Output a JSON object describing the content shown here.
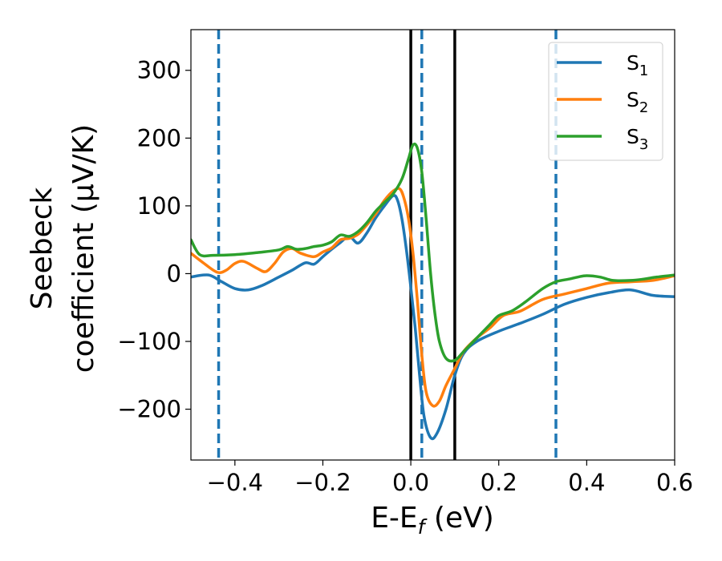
{
  "chart_data": {
    "type": "line",
    "title": "",
    "xlabel": {
      "main": "E-E",
      "sub": "f",
      "tail": " (eV)"
    },
    "ylabel": {
      "line1": "Seebeck",
      "line2": "coefficient  (μV/K)"
    },
    "xlim": [
      -0.5,
      0.6
    ],
    "ylim": [
      -275,
      360
    ],
    "xticks": [
      -0.4,
      -0.2,
      0.0,
      0.2,
      0.4,
      0.6
    ],
    "xtick_labels": [
      "−0.4",
      "−0.2",
      "0.0",
      "0.2",
      "0.4",
      "0.6"
    ],
    "yticks": [
      -200,
      -100,
      0,
      100,
      200,
      300
    ],
    "ytick_labels": [
      "−200",
      "−100",
      "0",
      "100",
      "200",
      "300"
    ],
    "grid": false,
    "legend_position": "top-right",
    "vlines_solid": [
      0.0,
      0.1
    ],
    "vlines_dashed": [
      -0.437,
      0.025,
      0.33
    ],
    "colors": {
      "S1": "#1f77b4",
      "S2": "#ff7f0e",
      "S3": "#2ca02c",
      "solid_line": "#000000",
      "dashed_line": "#1f77b4"
    },
    "series": [
      {
        "name": "S",
        "sub": "1",
        "color": "#1f77b4",
        "points": [
          [
            -0.5,
            -5
          ],
          [
            -0.46,
            -2
          ],
          [
            -0.43,
            -12
          ],
          [
            -0.4,
            -22
          ],
          [
            -0.37,
            -24
          ],
          [
            -0.34,
            -18
          ],
          [
            -0.3,
            -5
          ],
          [
            -0.27,
            5
          ],
          [
            -0.24,
            16
          ],
          [
            -0.22,
            14
          ],
          [
            -0.2,
            25
          ],
          [
            -0.18,
            36
          ],
          [
            -0.16,
            46
          ],
          [
            -0.14,
            55
          ],
          [
            -0.12,
            45
          ],
          [
            -0.1,
            60
          ],
          [
            -0.08,
            82
          ],
          [
            -0.06,
            100
          ],
          [
            -0.04,
            115
          ],
          [
            -0.03,
            108
          ],
          [
            -0.02,
            80
          ],
          [
            -0.01,
            35
          ],
          [
            0.0,
            -20
          ],
          [
            0.01,
            -80
          ],
          [
            0.02,
            -150
          ],
          [
            0.03,
            -210
          ],
          [
            0.045,
            -242
          ],
          [
            0.06,
            -235
          ],
          [
            0.08,
            -200
          ],
          [
            0.1,
            -150
          ],
          [
            0.12,
            -118
          ],
          [
            0.15,
            -100
          ],
          [
            0.2,
            -85
          ],
          [
            0.25,
            -73
          ],
          [
            0.3,
            -60
          ],
          [
            0.35,
            -45
          ],
          [
            0.4,
            -35
          ],
          [
            0.45,
            -28
          ],
          [
            0.5,
            -24
          ],
          [
            0.55,
            -32
          ],
          [
            0.6,
            -34
          ]
        ]
      },
      {
        "name": "S",
        "sub": "2",
        "color": "#ff7f0e",
        "points": [
          [
            -0.5,
            30
          ],
          [
            -0.47,
            15
          ],
          [
            -0.44,
            2
          ],
          [
            -0.42,
            5
          ],
          [
            -0.4,
            15
          ],
          [
            -0.38,
            18
          ],
          [
            -0.35,
            8
          ],
          [
            -0.33,
            3
          ],
          [
            -0.31,
            15
          ],
          [
            -0.29,
            32
          ],
          [
            -0.27,
            37
          ],
          [
            -0.25,
            30
          ],
          [
            -0.22,
            25
          ],
          [
            -0.2,
            32
          ],
          [
            -0.18,
            38
          ],
          [
            -0.16,
            50
          ],
          [
            -0.14,
            52
          ],
          [
            -0.12,
            58
          ],
          [
            -0.1,
            72
          ],
          [
            -0.08,
            88
          ],
          [
            -0.06,
            108
          ],
          [
            -0.04,
            122
          ],
          [
            -0.025,
            125
          ],
          [
            -0.015,
            110
          ],
          [
            -0.005,
            80
          ],
          [
            0.005,
            30
          ],
          [
            0.015,
            -40
          ],
          [
            0.025,
            -120
          ],
          [
            0.035,
            -175
          ],
          [
            0.05,
            -195
          ],
          [
            0.065,
            -188
          ],
          [
            0.08,
            -165
          ],
          [
            0.1,
            -140
          ],
          [
            0.12,
            -115
          ],
          [
            0.15,
            -95
          ],
          [
            0.18,
            -80
          ],
          [
            0.21,
            -62
          ],
          [
            0.25,
            -55
          ],
          [
            0.3,
            -38
          ],
          [
            0.35,
            -30
          ],
          [
            0.4,
            -22
          ],
          [
            0.45,
            -14
          ],
          [
            0.5,
            -12
          ],
          [
            0.55,
            -10
          ],
          [
            0.6,
            -3
          ]
        ]
      },
      {
        "name": "S",
        "sub": "3",
        "color": "#2ca02c",
        "points": [
          [
            -0.5,
            50
          ],
          [
            -0.48,
            28
          ],
          [
            -0.45,
            27
          ],
          [
            -0.4,
            28
          ],
          [
            -0.35,
            31
          ],
          [
            -0.3,
            35
          ],
          [
            -0.28,
            40
          ],
          [
            -0.26,
            36
          ],
          [
            -0.24,
            37
          ],
          [
            -0.22,
            40
          ],
          [
            -0.2,
            42
          ],
          [
            -0.18,
            47
          ],
          [
            -0.16,
            57
          ],
          [
            -0.14,
            55
          ],
          [
            -0.12,
            62
          ],
          [
            -0.1,
            75
          ],
          [
            -0.08,
            92
          ],
          [
            -0.06,
            105
          ],
          [
            -0.04,
            118
          ],
          [
            -0.02,
            140
          ],
          [
            -0.005,
            170
          ],
          [
            0.005,
            190
          ],
          [
            0.015,
            185
          ],
          [
            0.025,
            150
          ],
          [
            0.035,
            80
          ],
          [
            0.045,
            0
          ],
          [
            0.055,
            -60
          ],
          [
            0.065,
            -100
          ],
          [
            0.08,
            -125
          ],
          [
            0.1,
            -128
          ],
          [
            0.12,
            -115
          ],
          [
            0.15,
            -95
          ],
          [
            0.18,
            -75
          ],
          [
            0.2,
            -62
          ],
          [
            0.23,
            -55
          ],
          [
            0.26,
            -42
          ],
          [
            0.3,
            -22
          ],
          [
            0.33,
            -12
          ],
          [
            0.36,
            -8
          ],
          [
            0.38,
            -5
          ],
          [
            0.4,
            -3
          ],
          [
            0.43,
            -5
          ],
          [
            0.46,
            -10
          ],
          [
            0.5,
            -10
          ],
          [
            0.53,
            -8
          ],
          [
            0.56,
            -5
          ],
          [
            0.6,
            -2
          ]
        ]
      }
    ]
  }
}
